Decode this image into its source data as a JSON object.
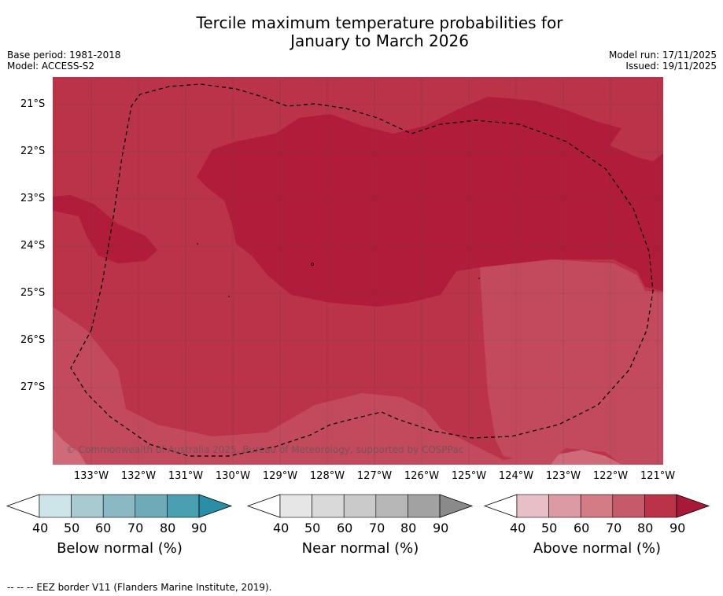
{
  "title": {
    "line1": "Tercile maximum temperature probabilities for",
    "line2": "January to March 2026"
  },
  "meta": {
    "base_period": "Base period: 1981-2018",
    "model": "Model: ACCESS-S2",
    "model_run": "Model run: 17/11/2025",
    "issued": "Issued: 19/11/2025"
  },
  "map": {
    "lon_labels": [
      "133°W",
      "132°W",
      "131°W",
      "130°W",
      "129°W",
      "128°W",
      "127°W",
      "126°W",
      "125°W",
      "124°W",
      "123°W",
      "122°W",
      "121°W"
    ],
    "lat_labels": [
      "21°S",
      "22°S",
      "23°S",
      "24°S",
      "25°S",
      "26°S",
      "27°S"
    ],
    "copyright": "© Commonwealth of Australia 2025, Bureau of Meteorology, supported by COSPPac",
    "colors": {
      "above_70_80": "#bb3349",
      "above_80_90": "#b01c3a",
      "above_60_70": "#c85465"
    }
  },
  "colorbars": [
    {
      "title": "Below normal (%)",
      "ticks": [
        "40",
        "50",
        "60",
        "70",
        "80",
        "90"
      ],
      "colors": [
        "#ffffff",
        "#cde4e8",
        "#a8cbd1",
        "#8ab8c3",
        "#6eaab7",
        "#4a9fb0",
        "#2a8fa6"
      ]
    },
    {
      "title": "Near normal (%)",
      "ticks": [
        "40",
        "50",
        "60",
        "70",
        "80",
        "90"
      ],
      "colors": [
        "#ffffff",
        "#e6e6e6",
        "#d9d9d9",
        "#cacaca",
        "#b7b7b7",
        "#a2a2a2",
        "#8a8a8a"
      ]
    },
    {
      "title": "Above normal (%)",
      "ticks": [
        "40",
        "50",
        "60",
        "70",
        "80",
        "90"
      ],
      "colors": [
        "#ffffff",
        "#e8bfc6",
        "#dc9aa4",
        "#d37c85",
        "#c45a6a",
        "#bb3349",
        "#a81838"
      ]
    }
  ],
  "footnote": "--  --  -- EEZ border V11 (Flanders Marine Institute, 2019)."
}
